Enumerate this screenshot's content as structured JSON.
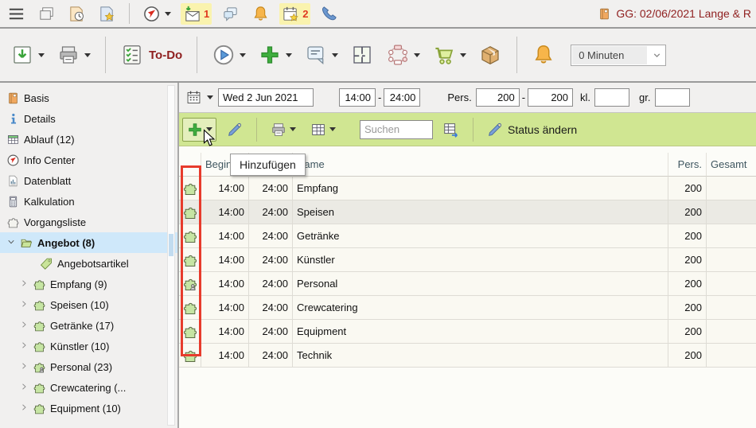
{
  "colors": {
    "accent_green": "#3fae3f",
    "toolbar_green": "#d0e692",
    "selection_blue": "#cfe8fa",
    "highlight_red": "#e73b2c",
    "title_red": "#8f1f1f",
    "badge_red": "#e0391f",
    "icon_highlight_yellow": "#faf3ae"
  },
  "window": {
    "title_icon": "book",
    "title": "GG: 02/06/2021 Lange & R"
  },
  "toolbar_top": {
    "items": [
      {
        "icon": "menu"
      },
      {
        "icon": "windows"
      },
      {
        "icon": "doc-clock"
      },
      {
        "icon": "doc-star"
      },
      {
        "sep": true
      },
      {
        "icon": "compass",
        "dropdown": true
      },
      {
        "icon": "mail-in",
        "badge": "1",
        "highlight": true
      },
      {
        "icon": "chat"
      },
      {
        "icon": "bell"
      },
      {
        "icon": "calendar-star",
        "badge": "2",
        "highlight": true
      },
      {
        "icon": "phone"
      }
    ]
  },
  "toolbar_main": {
    "items": [
      {
        "icon": "import",
        "dropdown": true
      },
      {
        "icon": "printer",
        "dropdown": true
      },
      {
        "sep": true
      },
      {
        "icon": "checklist",
        "label": "To-Do"
      },
      {
        "sep": true
      },
      {
        "icon": "play",
        "dropdown": true
      },
      {
        "icon": "plus",
        "dropdown": true
      },
      {
        "icon": "note",
        "dropdown": true
      },
      {
        "icon": "floorplan"
      },
      {
        "icon": "workflow",
        "dropdown": true
      },
      {
        "icon": "cart",
        "dropdown": true
      },
      {
        "icon": "package"
      },
      {
        "sep": true
      },
      {
        "icon": "bell"
      }
    ],
    "minutes": {
      "value": "0 Minuten"
    }
  },
  "sidebar": {
    "items": [
      {
        "label": "Basis",
        "icon": "book",
        "level": 0
      },
      {
        "label": "Details",
        "icon": "info",
        "level": 0
      },
      {
        "label": "Ablauf (12)",
        "icon": "table-green",
        "level": 0
      },
      {
        "label": "Info Center",
        "icon": "compass",
        "level": 0
      },
      {
        "label": "Datenblatt",
        "icon": "chart-doc",
        "level": 0
      },
      {
        "label": "Kalkulation",
        "icon": "calculator",
        "level": 0
      },
      {
        "label": "Vorgangsliste",
        "icon": "puzzle-white",
        "level": 0
      },
      {
        "label": "Angebot (8)",
        "icon": "folder-open",
        "level": 0,
        "expanded": true,
        "selected": true,
        "bold": true
      },
      {
        "label": "Angebotsartikel",
        "icon": "tag",
        "level": 2
      },
      {
        "label": "Empfang (9)",
        "icon": "puzzle",
        "level": 1,
        "chevron": true
      },
      {
        "label": "Speisen (10)",
        "icon": "puzzle",
        "level": 1,
        "chevron": true
      },
      {
        "label": "Getränke (17)",
        "icon": "puzzle",
        "level": 1,
        "chevron": true
      },
      {
        "label": "Künstler (10)",
        "icon": "puzzle",
        "level": 1,
        "chevron": true
      },
      {
        "label": "Personal (23)",
        "icon": "puzzle-person",
        "level": 1,
        "chevron": true
      },
      {
        "label": "Crewcatering (...",
        "icon": "puzzle",
        "level": 1,
        "chevron": true
      },
      {
        "label": "Equipment (10)",
        "icon": "puzzle",
        "level": 1,
        "chevron": true
      }
    ]
  },
  "filterbar": {
    "date": "Wed 2 Jun 2021",
    "time_from": "14:00",
    "time_to": "24:00",
    "pers_label": "Pers.",
    "pers_from": "200",
    "pers_to": "200",
    "kl_label": "kl.",
    "kl_value": "",
    "gr_label": "gr.",
    "gr_value": ""
  },
  "actionbar": {
    "search_placeholder": "Suchen",
    "status_label": "Status ändern"
  },
  "tooltip": "Hinzufügen",
  "table": {
    "columns": [
      "",
      "Beginn",
      "Ende",
      "Name",
      "Pers.",
      "Gesamt"
    ],
    "rows": [
      {
        "icon": "puzzle",
        "begin": "14:00",
        "end": "24:00",
        "name": "Empfang",
        "pers": "200",
        "gesamt": ""
      },
      {
        "icon": "puzzle",
        "begin": "14:00",
        "end": "24:00",
        "name": "Speisen",
        "pers": "200",
        "gesamt": "",
        "shaded": true
      },
      {
        "icon": "puzzle",
        "begin": "14:00",
        "end": "24:00",
        "name": "Getränke",
        "pers": "200",
        "gesamt": ""
      },
      {
        "icon": "puzzle",
        "begin": "14:00",
        "end": "24:00",
        "name": "Künstler",
        "pers": "200",
        "gesamt": ""
      },
      {
        "icon": "puzzle-person",
        "begin": "14:00",
        "end": "24:00",
        "name": "Personal",
        "pers": "200",
        "gesamt": ""
      },
      {
        "icon": "puzzle",
        "begin": "14:00",
        "end": "24:00",
        "name": "Crewcatering",
        "pers": "200",
        "gesamt": ""
      },
      {
        "icon": "puzzle",
        "begin": "14:00",
        "end": "24:00",
        "name": "Equipment",
        "pers": "200",
        "gesamt": ""
      },
      {
        "icon": "puzzle",
        "begin": "14:00",
        "end": "24:00",
        "name": "Technik",
        "pers": "200",
        "gesamt": ""
      }
    ]
  }
}
